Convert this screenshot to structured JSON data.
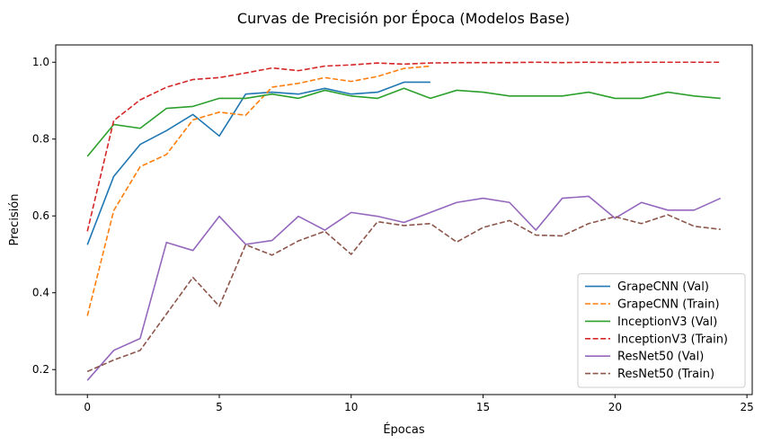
{
  "chart_data": {
    "type": "line",
    "title": "Curvas de Precisión por Época (Modelos Base)",
    "xlabel": "Épocas",
    "ylabel": "Precisión",
    "xlim": [
      -1.2,
      25.2
    ],
    "ylim": [
      0.135,
      1.045
    ],
    "xticks": [
      0,
      5,
      10,
      15,
      20,
      25
    ],
    "yticks": [
      0.2,
      0.4,
      0.6,
      0.8,
      1.0
    ],
    "ytick_labels": [
      "0.2",
      "0.4",
      "0.6",
      "0.8",
      "1.0"
    ],
    "grid": false,
    "legend_position": "lower-right",
    "series": [
      {
        "name": "GrapeCNN (Val)",
        "color": "#1f77b4",
        "dashed": false,
        "x": [
          0,
          1,
          2,
          3,
          4,
          5,
          6,
          7,
          8,
          9,
          10,
          11,
          12,
          13
        ],
        "y": [
          0.525,
          0.703,
          0.786,
          0.822,
          0.864,
          0.808,
          0.917,
          0.922,
          0.917,
          0.932,
          0.917,
          0.922,
          0.948,
          0.948
        ]
      },
      {
        "name": "GrapeCNN (Train)",
        "color": "#ff7f0e",
        "dashed": true,
        "x": [
          0,
          1,
          2,
          3,
          4,
          5,
          6,
          7,
          8,
          9,
          10,
          11,
          12,
          13
        ],
        "y": [
          0.34,
          0.614,
          0.728,
          0.76,
          0.85,
          0.87,
          0.862,
          0.935,
          0.945,
          0.96,
          0.95,
          0.963,
          0.984,
          0.99
        ]
      },
      {
        "name": "InceptionV3 (Val)",
        "color": "#2ca02c",
        "dashed": false,
        "x": [
          0,
          1,
          2,
          3,
          4,
          5,
          6,
          7,
          8,
          9,
          10,
          11,
          12,
          13,
          14,
          15,
          16,
          17,
          18,
          19,
          20,
          21,
          22,
          23,
          24
        ],
        "y": [
          0.755,
          0.838,
          0.828,
          0.88,
          0.885,
          0.906,
          0.906,
          0.917,
          0.906,
          0.927,
          0.912,
          0.906,
          0.932,
          0.906,
          0.927,
          0.922,
          0.912,
          0.912,
          0.912,
          0.922,
          0.906,
          0.906,
          0.922,
          0.912,
          0.906
        ]
      },
      {
        "name": "InceptionV3 (Train)",
        "color": "#d62728",
        "dashed": true,
        "x": [
          0,
          1,
          2,
          3,
          4,
          5,
          6,
          7,
          8,
          9,
          10,
          11,
          12,
          13,
          14,
          15,
          16,
          17,
          18,
          19,
          20,
          21,
          22,
          23,
          24
        ],
        "y": [
          0.56,
          0.848,
          0.902,
          0.935,
          0.955,
          0.96,
          0.972,
          0.985,
          0.978,
          0.99,
          0.993,
          0.998,
          0.995,
          0.998,
          0.999,
          0.999,
          0.999,
          1.0,
          0.999,
          1.0,
          0.999,
          1.0,
          1.0,
          1.0,
          1.0
        ]
      },
      {
        "name": "ResNet50 (Val)",
        "color": "#9467bd",
        "dashed": false,
        "x": [
          0,
          1,
          2,
          3,
          4,
          5,
          6,
          7,
          8,
          9,
          10,
          11,
          12,
          13,
          14,
          15,
          16,
          17,
          18,
          19,
          20,
          21,
          22,
          23,
          24
        ],
        "y": [
          0.172,
          0.25,
          0.281,
          0.531,
          0.51,
          0.599,
          0.526,
          0.536,
          0.599,
          0.563,
          0.609,
          0.599,
          0.583,
          0.609,
          0.635,
          0.646,
          0.635,
          0.563,
          0.646,
          0.651,
          0.594,
          0.635,
          0.615,
          0.615,
          0.646
        ]
      },
      {
        "name": "ResNet50 (Train)",
        "color": "#8c564b",
        "dashed": true,
        "x": [
          0,
          1,
          2,
          3,
          4,
          5,
          6,
          7,
          8,
          9,
          10,
          11,
          12,
          13,
          14,
          15,
          16,
          17,
          18,
          19,
          20,
          21,
          22,
          23,
          24
        ],
        "y": [
          0.195,
          0.225,
          0.25,
          0.345,
          0.44,
          0.365,
          0.525,
          0.498,
          0.535,
          0.56,
          0.5,
          0.585,
          0.575,
          0.58,
          0.532,
          0.57,
          0.588,
          0.55,
          0.548,
          0.58,
          0.598,
          0.58,
          0.603,
          0.573,
          0.565
        ]
      }
    ]
  }
}
